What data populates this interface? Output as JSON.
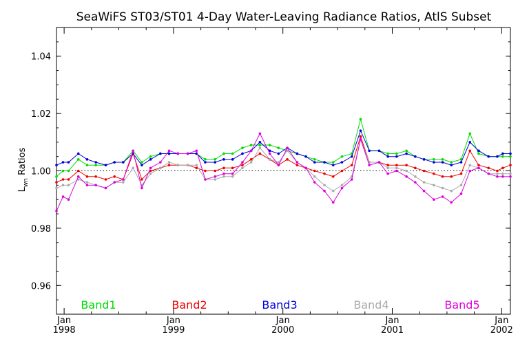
{
  "chart_data": {
    "type": "line",
    "title": "SeaWiFS ST03/ST01 4-Day Water-Leaving Radiance Ratios, AtlS Subset",
    "ylabel_main": "L",
    "ylabel_sub": "wn",
    "ylabel_rest": " Ratios",
    "xlabel": "",
    "xlim": [
      1997.93,
      2002.08
    ],
    "ylim": [
      0.95,
      1.05
    ],
    "yticks": [
      {
        "value": 0.96,
        "label": "0.96"
      },
      {
        "value": 0.98,
        "label": "0.98"
      },
      {
        "value": 1.0,
        "label": "1.00"
      },
      {
        "value": 1.02,
        "label": "1.02"
      },
      {
        "value": 1.04,
        "label": "1.04"
      }
    ],
    "xticks": [
      {
        "value": 1998,
        "line1": "Jan",
        "line2": "1998"
      },
      {
        "value": 1999,
        "line1": "Jan",
        "line2": "1999"
      },
      {
        "value": 2000,
        "line1": "Jan",
        "line2": "2000"
      },
      {
        "value": 2001,
        "line1": "Jan",
        "line2": "2001"
      },
      {
        "value": 2002,
        "line1": "Jan",
        "line2": "2002"
      }
    ],
    "reference_line": 1.0,
    "x": [
      1997.93,
      1997.99,
      1998.04,
      1998.13,
      1998.21,
      1998.29,
      1998.38,
      1998.46,
      1998.54,
      1998.63,
      1998.71,
      1998.79,
      1998.88,
      1998.96,
      1999.04,
      1999.13,
      1999.21,
      1999.29,
      1999.38,
      1999.46,
      1999.54,
      1999.63,
      1999.71,
      1999.79,
      1999.88,
      1999.96,
      2000.04,
      2000.13,
      2000.21,
      2000.29,
      2000.38,
      2000.46,
      2000.54,
      2000.63,
      2000.71,
      2000.79,
      2000.88,
      2000.96,
      2001.04,
      2001.13,
      2001.21,
      2001.29,
      2001.38,
      2001.46,
      2001.54,
      2001.63,
      2001.71,
      2001.79,
      2001.88,
      2001.96,
      2002.01,
      2002.08
    ],
    "series": [
      {
        "name": "Band1",
        "color": "#00dd00",
        "values": [
          0.998,
          1.0,
          1.0,
          1.004,
          1.002,
          1.002,
          1.002,
          1.003,
          1.003,
          1.007,
          1.003,
          1.005,
          1.006,
          1.006,
          1.006,
          1.006,
          1.006,
          1.004,
          1.004,
          1.006,
          1.006,
          1.008,
          1.009,
          1.009,
          1.009,
          1.008,
          1.007,
          1.006,
          1.005,
          1.004,
          1.003,
          1.003,
          1.005,
          1.006,
          1.018,
          1.007,
          1.007,
          1.006,
          1.006,
          1.007,
          1.005,
          1.004,
          1.004,
          1.004,
          1.003,
          1.004,
          1.013,
          1.006,
          1.005,
          1.005,
          1.005,
          1.005
        ]
      },
      {
        "name": "Band2",
        "color": "#ee0000",
        "values": [
          0.996,
          0.997,
          0.997,
          1.0,
          0.998,
          0.998,
          0.997,
          0.998,
          0.997,
          1.006,
          0.997,
          1.0,
          1.001,
          1.002,
          1.002,
          1.002,
          1.001,
          1.0,
          1.0,
          1.001,
          1.001,
          1.002,
          1.004,
          1.006,
          1.004,
          1.002,
          1.004,
          1.002,
          1.001,
          1.0,
          0.999,
          0.998,
          1.0,
          1.002,
          1.012,
          1.003,
          1.003,
          1.002,
          1.002,
          1.002,
          1.001,
          1.0,
          0.999,
          0.998,
          0.998,
          0.999,
          1.007,
          1.002,
          1.001,
          1.0,
          1.001,
          1.002
        ]
      },
      {
        "name": "Band3",
        "color": "#0000dd",
        "values": [
          1.002,
          1.003,
          1.003,
          1.006,
          1.004,
          1.003,
          1.002,
          1.003,
          1.003,
          1.006,
          1.002,
          1.004,
          1.006,
          1.006,
          1.006,
          1.006,
          1.006,
          1.003,
          1.003,
          1.004,
          1.004,
          1.006,
          1.007,
          1.01,
          1.007,
          1.006,
          1.008,
          1.006,
          1.005,
          1.003,
          1.003,
          1.002,
          1.003,
          1.005,
          1.014,
          1.007,
          1.007,
          1.005,
          1.005,
          1.006,
          1.005,
          1.004,
          1.003,
          1.003,
          1.002,
          1.003,
          1.01,
          1.007,
          1.005,
          1.005,
          1.006,
          1.006
        ]
      },
      {
        "name": "Band4",
        "color": "#aaaaaa",
        "values": [
          0.994,
          0.995,
          0.995,
          0.997,
          0.996,
          0.995,
          0.994,
          0.996,
          0.996,
          1.001,
          0.995,
          0.999,
          1.001,
          1.003,
          1.002,
          1.002,
          1.002,
          0.997,
          0.997,
          0.998,
          0.998,
          1.001,
          1.003,
          1.008,
          1.004,
          1.003,
          1.007,
          1.003,
          1.001,
          0.998,
          0.995,
          0.993,
          0.995,
          0.998,
          1.011,
          1.003,
          1.003,
          1.001,
          1.001,
          1.0,
          0.998,
          0.996,
          0.995,
          0.994,
          0.993,
          0.995,
          1.002,
          1.001,
          0.999,
          0.999,
          0.999,
          0.999
        ]
      },
      {
        "name": "Band5",
        "color": "#dd00dd",
        "values": [
          0.986,
          0.991,
          0.99,
          0.998,
          0.995,
          0.995,
          0.994,
          0.996,
          0.997,
          1.007,
          0.994,
          1.001,
          1.003,
          1.007,
          1.006,
          1.006,
          1.007,
          0.997,
          0.998,
          0.999,
          0.999,
          1.003,
          1.007,
          1.013,
          1.006,
          1.002,
          1.008,
          1.003,
          1.001,
          0.996,
          0.993,
          0.989,
          0.994,
          0.997,
          1.011,
          1.002,
          1.003,
          0.999,
          1.0,
          0.998,
          0.996,
          0.993,
          0.99,
          0.991,
          0.989,
          0.992,
          1.0,
          1.001,
          0.999,
          0.998,
          0.998,
          0.998
        ]
      }
    ]
  }
}
